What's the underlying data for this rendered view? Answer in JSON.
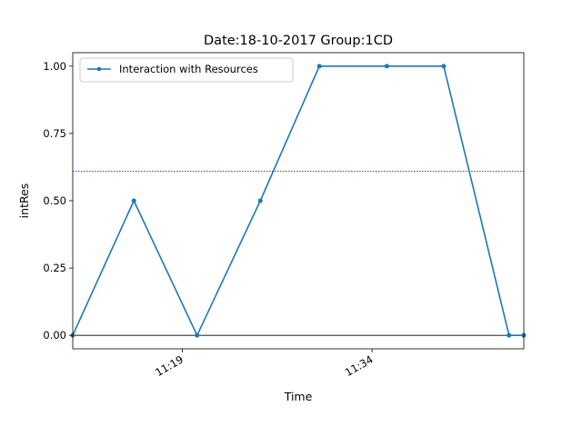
{
  "chart_data": {
    "type": "line",
    "title": "Date:18-10-2017  Group:1CD",
    "xlabel": "Time",
    "ylabel": "intRes",
    "x_ticks": [
      "11:19",
      "11:34"
    ],
    "y_ticks": [
      "0.00",
      "0.25",
      "0.50",
      "0.75",
      "1.00"
    ],
    "ylim": [
      -0.05,
      1.05
    ],
    "grid": false,
    "legend_position": "top-left",
    "reference_line": {
      "value": 0.61,
      "style": "dotted",
      "color": "#0000ff"
    },
    "zero_line": {
      "value": 0.0,
      "color": "#000000"
    },
    "series": [
      {
        "name": "Interaction with Resources",
        "color": "#1f77b4",
        "x": [
          "11:10:20",
          "11:15:10",
          "11:20:10",
          "11:25:10",
          "11:29:50",
          "11:35:10",
          "11:39:40",
          "11:44:50",
          "11:46:00"
        ],
        "y": [
          0.0,
          0.5,
          0.0,
          0.5,
          1.0,
          1.0,
          1.0,
          0.0,
          0.0
        ]
      }
    ]
  }
}
